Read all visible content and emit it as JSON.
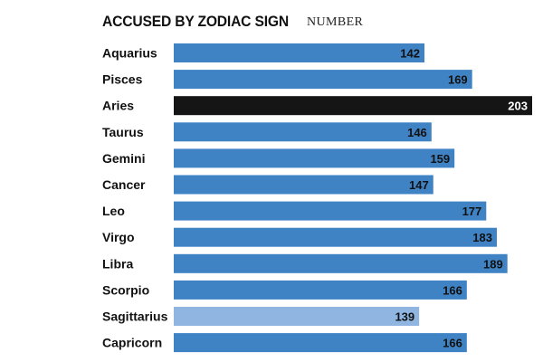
{
  "chart_data": {
    "type": "bar",
    "orientation": "horizontal",
    "title": "ACCUSED BY ZODIAC SIGN",
    "subtitle": "NUMBER",
    "categories": [
      "Aquarius",
      "Pisces",
      "Aries",
      "Taurus",
      "Gemini",
      "Cancer",
      "Leo",
      "Virgo",
      "Libra",
      "Scorpio",
      "Sagittarius",
      "Capricorn"
    ],
    "values": [
      142,
      169,
      203,
      146,
      159,
      147,
      177,
      183,
      189,
      166,
      139,
      166
    ],
    "xlim": [
      0,
      203
    ],
    "highlight": {
      "max": "Aries",
      "min": "Sagittarius"
    },
    "colors": {
      "bar": "#3f83c4",
      "max": "#151515",
      "min": "#90b5e0",
      "label_on_bar": "#111111",
      "label_on_max": "#ffffff"
    },
    "grid": false,
    "legend": "none"
  }
}
